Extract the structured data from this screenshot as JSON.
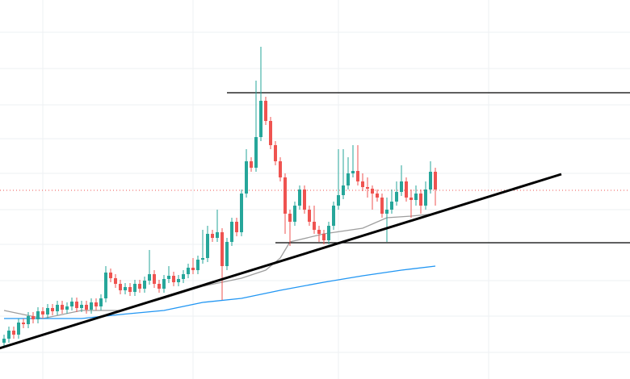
{
  "chart_data": {
    "type": "candlestick",
    "up_color": "#26a69a",
    "down_color": "#ef5350",
    "ylim": [
      0,
      470
    ],
    "grid": true,
    "grid_levels": [
      430,
      385,
      340,
      298,
      255,
      210,
      167,
      122,
      78,
      33
    ],
    "grid_columns": [
      8,
      39,
      69,
      100
    ],
    "open": [
      45,
      50,
      60,
      55,
      70,
      68,
      78,
      74,
      84,
      80,
      88,
      84,
      92,
      86,
      90,
      96,
      88,
      92,
      86,
      95,
      90,
      100,
      132,
      125,
      118,
      110,
      114,
      108,
      118,
      112,
      122,
      130,
      118,
      112,
      124,
      128,
      120,
      124,
      130,
      138,
      135,
      148,
      150,
      180,
      175,
      182,
      140,
      170,
      195,
      182,
      230,
      270,
      262,
      300,
      345,
      320,
      290,
      270,
      250,
      205,
      195,
      215,
      235,
      210,
      195,
      185,
      180,
      172,
      190,
      215,
      228,
      240,
      255,
      258,
      245,
      238,
      236,
      230,
      225,
      205,
      210,
      220,
      232,
      245,
      225,
      222,
      230,
      215,
      235,
      257
    ],
    "high": [
      55,
      65,
      65,
      75,
      75,
      83,
      83,
      89,
      89,
      93,
      93,
      97,
      97,
      95,
      101,
      101,
      97,
      97,
      100,
      100,
      105,
      140,
      137,
      130,
      123,
      119,
      119,
      123,
      123,
      127,
      160,
      135,
      123,
      129,
      140,
      133,
      129,
      135,
      143,
      150,
      153,
      185,
      190,
      185,
      210,
      187,
      175,
      200,
      200,
      235,
      285,
      275,
      370,
      412,
      350,
      325,
      295,
      275,
      255,
      210,
      220,
      240,
      240,
      215,
      215,
      190,
      185,
      195,
      220,
      285,
      285,
      275,
      290,
      290,
      255,
      250,
      240,
      235,
      230,
      225,
      235,
      245,
      265,
      250,
      235,
      240,
      235,
      245,
      270,
      262
    ],
    "low": [
      40,
      45,
      50,
      50,
      63,
      63,
      69,
      69,
      75,
      75,
      79,
      79,
      81,
      81,
      85,
      83,
      83,
      81,
      81,
      85,
      85,
      95,
      120,
      113,
      105,
      105,
      103,
      103,
      107,
      107,
      117,
      113,
      107,
      107,
      119,
      115,
      115,
      119,
      125,
      130,
      130,
      143,
      145,
      170,
      170,
      98,
      135,
      165,
      177,
      177,
      225,
      257,
      257,
      295,
      315,
      285,
      265,
      245,
      180,
      165,
      190,
      210,
      205,
      190,
      180,
      170,
      167,
      167,
      185,
      210,
      223,
      235,
      250,
      240,
      233,
      225,
      210,
      220,
      200,
      170,
      205,
      215,
      227,
      220,
      200,
      215,
      205,
      210,
      230,
      215
    ],
    "close": [
      50,
      60,
      55,
      70,
      68,
      78,
      74,
      84,
      80,
      88,
      84,
      92,
      86,
      90,
      96,
      88,
      92,
      86,
      95,
      90,
      100,
      132,
      125,
      118,
      110,
      114,
      108,
      118,
      112,
      122,
      130,
      118,
      112,
      124,
      128,
      120,
      124,
      130,
      138,
      135,
      148,
      150,
      180,
      175,
      182,
      140,
      170,
      195,
      182,
      230,
      270,
      262,
      300,
      345,
      320,
      290,
      270,
      250,
      205,
      195,
      215,
      235,
      210,
      195,
      185,
      180,
      172,
      190,
      215,
      228,
      240,
      255,
      258,
      245,
      238,
      236,
      230,
      225,
      205,
      210,
      220,
      232,
      245,
      225,
      222,
      230,
      215,
      235,
      257,
      235
    ],
    "moving_averages": [
      {
        "color": "#9e9e9e",
        "index": [
          0,
          8,
          16,
          24,
          33,
          41,
          49,
          54,
          57,
          59,
          66,
          74,
          79,
          84,
          89
        ],
        "values": [
          85,
          75,
          85,
          85,
          100,
          115,
          125,
          135,
          150,
          170,
          180,
          187,
          200,
          202,
          205
        ]
      },
      {
        "color": "#2196f3",
        "index": [
          0,
          8,
          16,
          24,
          33,
          41,
          49,
          57,
          66,
          74,
          82,
          89
        ],
        "values": [
          75,
          75,
          75,
          80,
          85,
          95,
          100,
          110,
          120,
          128,
          135,
          140
        ]
      }
    ],
    "trendline": {
      "index": [
        -1,
        115
      ],
      "values": [
        38,
        254
      ]
    },
    "resistance": {
      "start_index": 46,
      "value": 355
    },
    "support": {
      "start_index": 56,
      "value": 169
    },
    "last_price": 234
  }
}
